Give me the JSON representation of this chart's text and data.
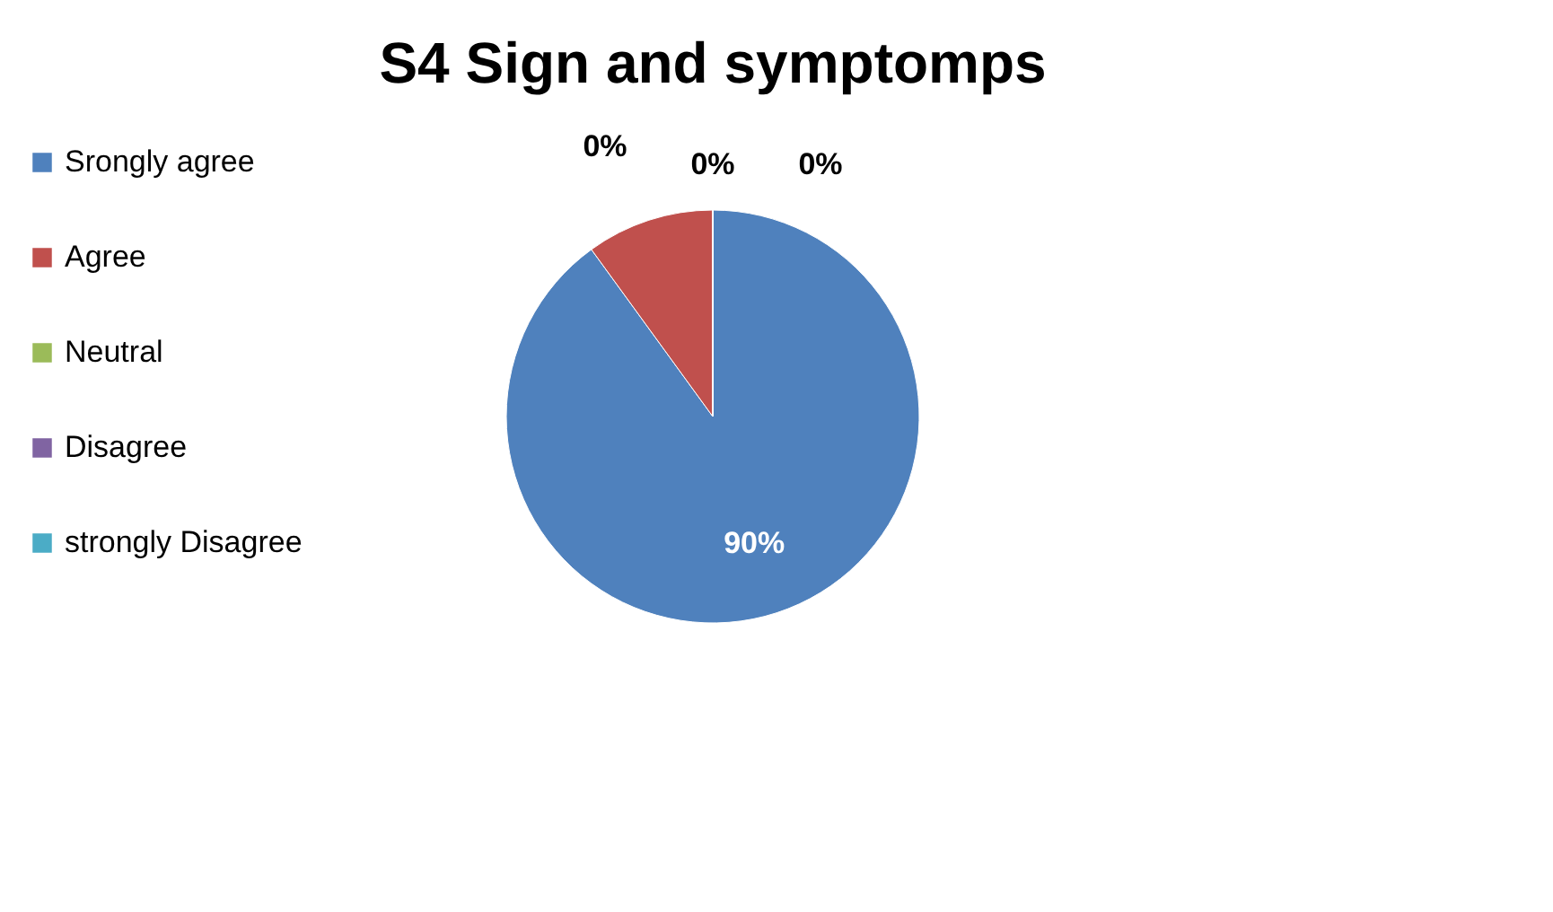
{
  "chart_data": {
    "type": "pie",
    "title": "S4 Sign and symptomps",
    "categories": [
      "Srongly agree",
      "Agree",
      "Neutral",
      "Disagree",
      "strongly Disagree"
    ],
    "values": [
      90,
      10,
      0,
      0,
      0
    ],
    "colors": [
      "#4f81bd",
      "#c0504d",
      "#9bbb59",
      "#8064a2",
      "#4bacc6"
    ],
    "value_labels": [
      "90%",
      null,
      "0%",
      "0%",
      "0%"
    ],
    "legend": "left"
  }
}
